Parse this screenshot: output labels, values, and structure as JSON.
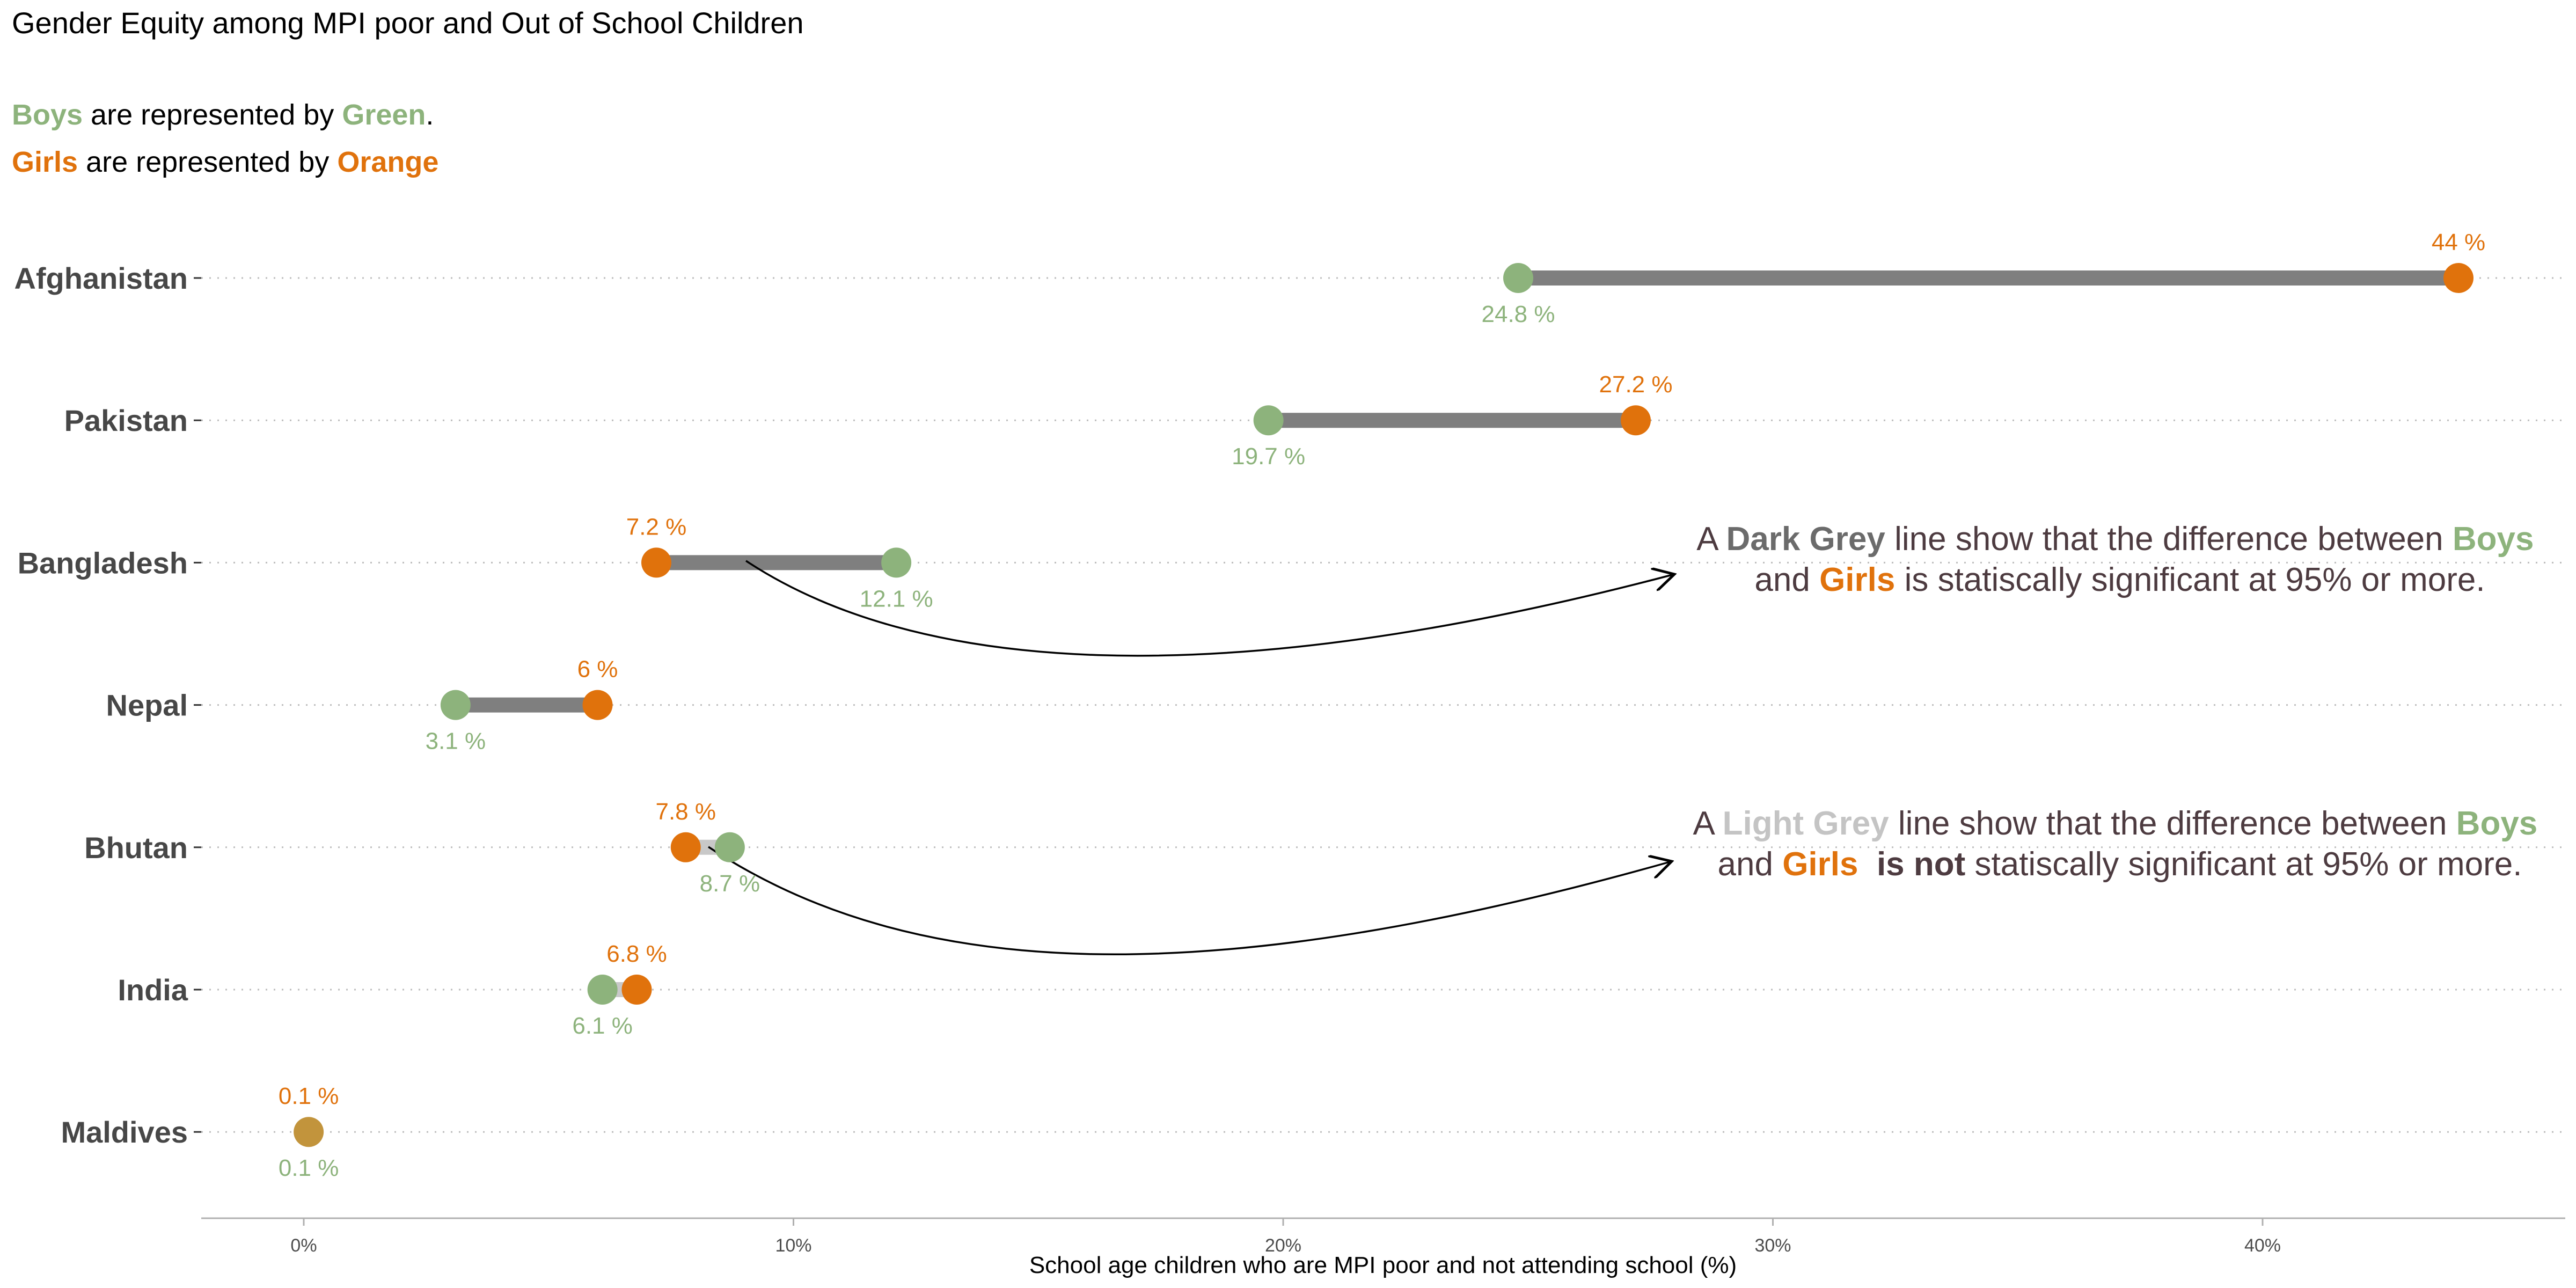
{
  "title": "Gender Equity among MPI poor and Out of School Children",
  "legend": {
    "boys_line": {
      "word": "Boys",
      "text": " are represented by ",
      "color_word": "Green",
      "end": "."
    },
    "girls_line": {
      "word": "Girls",
      "text": " are represented by ",
      "color_word": "Orange",
      "end": ""
    }
  },
  "colors": {
    "boys": "#8db37c",
    "girls": "#e0720c",
    "overlap": "#c2943c",
    "dark_grey_line": "#7f7f7f",
    "light_grey_line": "#c8c8c8",
    "annotation_text": "#4d3b40",
    "category_label": "#474747",
    "axis": "#b0b0b0"
  },
  "annotations": [
    {
      "line1": [
        {
          "t": "A ",
          "style": "plain"
        },
        {
          "t": "Dark Grey",
          "style": "dark"
        },
        {
          "t": " line show that the difference between ",
          "style": "plain"
        },
        {
          "t": "Boys",
          "style": "boys"
        }
      ],
      "line2": [
        {
          "t": "and ",
          "style": "plain"
        },
        {
          "t": "Girls",
          "style": "girls"
        },
        {
          "t": " is statiscally significant at 95% or more.",
          "style": "plain"
        }
      ]
    },
    {
      "line1": [
        {
          "t": "A ",
          "style": "plain"
        },
        {
          "t": "Light Grey",
          "style": "light"
        },
        {
          "t": " line show that the difference between ",
          "style": "plain"
        },
        {
          "t": "Boys",
          "style": "boys"
        }
      ],
      "line2": [
        {
          "t": "and ",
          "style": "plain"
        },
        {
          "t": "Girls",
          "style": "girls"
        },
        {
          "t": "  ",
          "style": "plain"
        },
        {
          "t": "is not",
          "style": "bold"
        },
        {
          "t": " statiscally significant at 95% or more.",
          "style": "plain"
        }
      ]
    }
  ],
  "chart_data": {
    "type": "dumbbell",
    "title": "Gender Equity among MPI poor and Out of School Children",
    "xlabel": "School age children who are MPI poor and not attending school (%)",
    "ylabel": "",
    "xlim": [
      -2,
      46
    ],
    "x_ticks": [
      0,
      10,
      20,
      30,
      40
    ],
    "x_tick_labels": [
      "0%",
      "10%",
      "20%",
      "30%",
      "40%"
    ],
    "grid": "horizontal dotted",
    "categories": [
      "Afghanistan",
      "Pakistan",
      "Bangladesh",
      "Nepal",
      "Bhutan",
      "India",
      "Maldives"
    ],
    "series": [
      {
        "name": "Boys",
        "values": [
          24.8,
          19.7,
          12.1,
          3.1,
          8.7,
          6.1,
          0.1
        ],
        "labels": [
          "24.8 %",
          "19.7 %",
          "12.1 %",
          "3.1 %",
          "8.7 %",
          "6.1 %",
          "0.1 %"
        ]
      },
      {
        "name": "Girls",
        "values": [
          44,
          27.2,
          7.2,
          6,
          7.8,
          6.8,
          0.1
        ],
        "labels": [
          "44 %",
          "27.2 %",
          "7.2 %",
          "6 %",
          "7.8 %",
          "6.8 %",
          "0.1 %"
        ]
      }
    ],
    "significant": [
      true,
      true,
      true,
      true,
      false,
      false,
      false
    ]
  }
}
